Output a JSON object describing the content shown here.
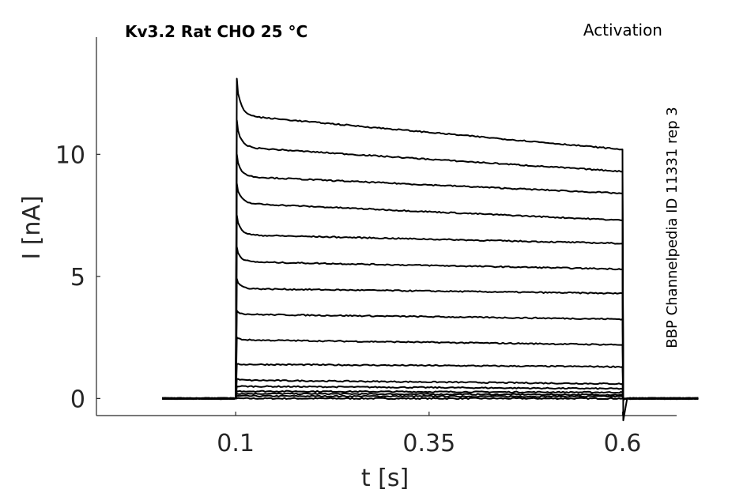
{
  "chart_data": {
    "type": "line",
    "title": "Kv3.2  Rat  CHO  25 °C",
    "protocol": "Activation",
    "source": "BBP Channelpedia ID 11331 rep 3",
    "xlabel": "t [s]",
    "ylabel": "I [nA]",
    "xlim": [
      -0.08,
      0.67
    ],
    "ylim": [
      -0.7,
      14.8
    ],
    "xticks": [
      0.1,
      0.35,
      0.6
    ],
    "xtick_labels": [
      "0.1",
      "0.35",
      "0.6"
    ],
    "yticks": [
      0,
      5,
      10
    ],
    "ytick_labels": [
      "0",
      "5",
      "10"
    ],
    "grid": false,
    "pulse": {
      "on": 0.1,
      "off": 0.6,
      "t_start": 0.005,
      "t_end": 0.7
    },
    "series": [
      {
        "peak": 0.0,
        "start": 0.0,
        "end": 0.0
      },
      {
        "peak": 0.1,
        "start": 0.1,
        "end": 0.08
      },
      {
        "peak": 0.2,
        "start": 0.2,
        "end": 0.15
      },
      {
        "peak": 0.3,
        "start": 0.3,
        "end": 0.25
      },
      {
        "peak": 0.5,
        "start": 0.5,
        "end": 0.4
      },
      {
        "peak": 0.8,
        "start": 0.75,
        "end": 0.6
      },
      {
        "peak": 1.4,
        "start": 1.4,
        "end": 1.3
      },
      {
        "peak": 2.5,
        "start": 2.4,
        "end": 2.2
      },
      {
        "peak": 3.6,
        "start": 3.45,
        "end": 3.25
      },
      {
        "peak": 4.9,
        "start": 4.5,
        "end": 4.3
      },
      {
        "peak": 6.2,
        "start": 5.6,
        "end": 5.3
      },
      {
        "peak": 7.5,
        "start": 6.7,
        "end": 6.35
      },
      {
        "peak": 8.8,
        "start": 8.0,
        "end": 7.3
      },
      {
        "peak": 10.0,
        "start": 9.1,
        "end": 8.4
      },
      {
        "peak": 11.4,
        "start": 10.3,
        "end": 9.3
      },
      {
        "peak": 13.1,
        "start": 11.6,
        "end": 10.2
      }
    ]
  }
}
